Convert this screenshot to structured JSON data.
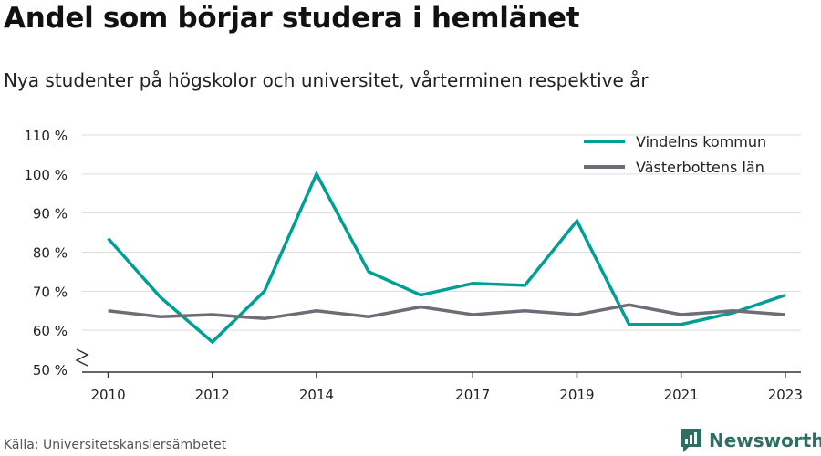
{
  "title": "Andel som börjar studera i hemlänet",
  "subtitle": "Nya studenter på högskolor och universitet, vårterminen respektive år",
  "source": "Källa: Universitetskanslersämbetet",
  "brand": {
    "name": "Newsworthy",
    "icon": "newsworthy-logo-icon"
  },
  "colors": {
    "vindeln": "#009f95",
    "vasterbotten": "#6e6c75",
    "grid": "#dddddd",
    "axis": "#333333",
    "brand": "#2f6e62"
  },
  "chart_data": {
    "type": "line",
    "x": [
      2010,
      2011,
      2012,
      2013,
      2014,
      2015,
      2016,
      2017,
      2018,
      2019,
      2020,
      2021,
      2022,
      2023
    ],
    "xticks": [
      2010,
      2012,
      2014,
      2017,
      2019,
      2021,
      2023
    ],
    "xlim": [
      2009.5,
      2023.3
    ],
    "ylim": [
      50,
      110
    ],
    "yticks": [
      50,
      60,
      70,
      80,
      90,
      100,
      110
    ],
    "ytick_labels": [
      "50 %",
      "60 %",
      "70 %",
      "80 %",
      "90 %",
      "100 %",
      "110 %"
    ],
    "axis_break": true,
    "grid": true,
    "legend_position": "top-right",
    "series": [
      {
        "name": "Vindelns kommun",
        "color": "#009f95",
        "values": [
          83.5,
          68.5,
          57.0,
          70.0,
          100.0,
          75.0,
          69.0,
          72.0,
          71.5,
          88.0,
          61.5,
          61.5,
          64.5,
          69.0
        ]
      },
      {
        "name": "Västerbottens län",
        "color": "#6e6c75",
        "values": [
          65.0,
          63.5,
          64.0,
          63.0,
          65.0,
          63.5,
          66.0,
          64.0,
          65.0,
          64.0,
          66.5,
          64.0,
          65.0,
          64.0
        ]
      }
    ]
  }
}
